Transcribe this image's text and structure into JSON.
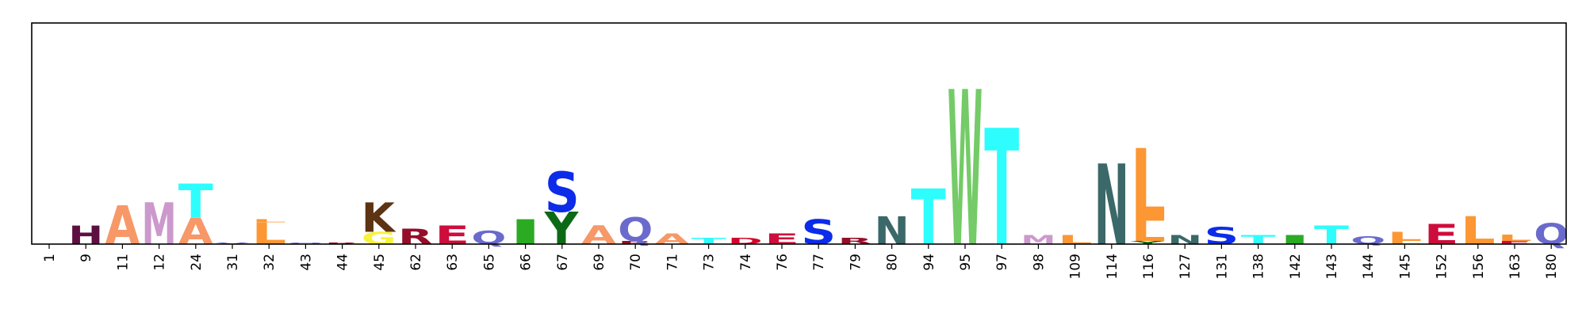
{
  "chart_data": {
    "type": "sequence-logo",
    "title": "",
    "xlabel": "",
    "ylabel": "",
    "ylim": [
      0,
      1.0
    ],
    "axes": {
      "frame": "box",
      "y_ticks": "hidden",
      "grid": false,
      "x_tick_rotation": -90
    },
    "colors": {
      "A": "#f79868",
      "C": "#f8f23c",
      "D": "#d2062c",
      "E": "#cd0d3c",
      "F": "#c7d2a8",
      "G": "#f8f23c",
      "H": "#5e0f41",
      "I": "#2bab24",
      "K": "#5c3313",
      "L": "#fc9733",
      "M": "#cc99cc",
      "N": "#3b6868",
      "P": "#da70d6",
      "Q": "#6a6acd",
      "R": "#940e2a",
      "S": "#0c2ce9",
      "T": "#2efdfd",
      "V": "#6a6acd",
      "W": "#74cb67",
      "Y": "#0c6a16"
    },
    "positions": [
      {
        "label": "1",
        "stack": []
      },
      {
        "label": "9",
        "stack": [
          {
            "aa": "H",
            "h": 0.12
          }
        ]
      },
      {
        "label": "11",
        "stack": [
          {
            "aa": "A",
            "h": 0.25
          }
        ]
      },
      {
        "label": "12",
        "stack": [
          {
            "aa": "M",
            "h": 0.27
          }
        ]
      },
      {
        "label": "24",
        "stack": [
          {
            "aa": "A",
            "h": 0.17
          },
          {
            "aa": "T",
            "h": 0.22
          }
        ]
      },
      {
        "label": "31",
        "stack": [
          {
            "aa": "V",
            "h": 0.01
          }
        ]
      },
      {
        "label": "32",
        "stack": [
          {
            "aa": "L",
            "h": 0.14
          },
          {
            "aa": "L",
            "h": 0.02
          }
        ]
      },
      {
        "label": "43",
        "stack": [
          {
            "aa": "Q",
            "h": 0.01
          }
        ]
      },
      {
        "label": "44",
        "stack": [
          {
            "aa": "R",
            "h": 0.01
          }
        ]
      },
      {
        "label": "45",
        "stack": [
          {
            "aa": "G",
            "h": 0.08
          },
          {
            "aa": "K",
            "h": 0.19
          }
        ]
      },
      {
        "label": "62",
        "stack": [
          {
            "aa": "R",
            "h": 0.1
          }
        ]
      },
      {
        "label": "63",
        "stack": [
          {
            "aa": "E",
            "h": 0.12
          }
        ]
      },
      {
        "label": "65",
        "stack": [
          {
            "aa": "Q",
            "h": 0.1
          }
        ]
      },
      {
        "label": "66",
        "stack": [
          {
            "aa": "I",
            "h": 0.02
          },
          {
            "aa": "I",
            "h": 0.14
          }
        ]
      },
      {
        "label": "67",
        "stack": [
          {
            "aa": "Y",
            "h": 0.21
          },
          {
            "aa": "S",
            "h": 0.26
          }
        ]
      },
      {
        "label": "69",
        "stack": [
          {
            "aa": "A",
            "h": 0.12
          }
        ]
      },
      {
        "label": "70",
        "stack": [
          {
            "aa": "R",
            "h": 0.02
          },
          {
            "aa": "Q",
            "h": 0.18
          }
        ]
      },
      {
        "label": "71",
        "stack": [
          {
            "aa": "A",
            "h": 0.07
          }
        ]
      },
      {
        "label": "73",
        "stack": [
          {
            "aa": "T",
            "h": 0.04
          }
        ]
      },
      {
        "label": "74",
        "stack": [
          {
            "aa": "D",
            "h": 0.04
          }
        ]
      },
      {
        "label": "76",
        "stack": [
          {
            "aa": "E",
            "h": 0.07
          }
        ]
      },
      {
        "label": "77",
        "stack": [
          {
            "aa": "S",
            "h": 0.16
          }
        ]
      },
      {
        "label": "79",
        "stack": [
          {
            "aa": "R",
            "h": 0.04
          }
        ]
      },
      {
        "label": "80",
        "stack": [
          {
            "aa": "N",
            "h": 0.18
          }
        ]
      },
      {
        "label": "94",
        "stack": [
          {
            "aa": "T",
            "h": 0.36
          }
        ]
      },
      {
        "label": "95",
        "stack": [
          {
            "aa": "W",
            "h": 1.0
          }
        ]
      },
      {
        "label": "97",
        "stack": [
          {
            "aa": "T",
            "h": 0.75
          }
        ]
      },
      {
        "label": "98",
        "stack": [
          {
            "aa": "M",
            "h": 0.06
          }
        ]
      },
      {
        "label": "109",
        "stack": [
          {
            "aa": "L",
            "h": 0.06
          }
        ]
      },
      {
        "label": "114",
        "stack": [
          {
            "aa": "N",
            "h": 0.52
          }
        ]
      },
      {
        "label": "116",
        "stack": [
          {
            "aa": "Y",
            "h": 0.02
          },
          {
            "aa": "L",
            "h": 0.13
          },
          {
            "aa": "L",
            "h": 0.47
          }
        ]
      },
      {
        "label": "127",
        "stack": [
          {
            "aa": "N",
            "h": 0.06
          }
        ]
      },
      {
        "label": "131",
        "stack": [
          {
            "aa": "S",
            "h": 0.11
          }
        ]
      },
      {
        "label": "138",
        "stack": [
          {
            "aa": "T",
            "h": 0.06
          }
        ]
      },
      {
        "label": "142",
        "stack": [
          {
            "aa": "I",
            "h": 0.06
          }
        ]
      },
      {
        "label": "143",
        "stack": [
          {
            "aa": "T",
            "h": 0.12
          }
        ]
      },
      {
        "label": "144",
        "stack": [
          {
            "aa": "Q",
            "h": 0.06
          }
        ]
      },
      {
        "label": "145",
        "stack": [
          {
            "aa": "L",
            "h": 0.02
          },
          {
            "aa": "L",
            "h": 0.06
          }
        ]
      },
      {
        "label": "152",
        "stack": [
          {
            "aa": "E",
            "h": 0.13
          }
        ]
      },
      {
        "label": "156",
        "stack": [
          {
            "aa": "L",
            "h": 0.18
          }
        ]
      },
      {
        "label": "163",
        "stack": [
          {
            "aa": "E",
            "h": 0.02
          },
          {
            "aa": "L",
            "h": 0.04
          }
        ]
      },
      {
        "label": "180",
        "stack": [
          {
            "aa": "Q",
            "h": 0.16
          }
        ]
      }
    ]
  }
}
